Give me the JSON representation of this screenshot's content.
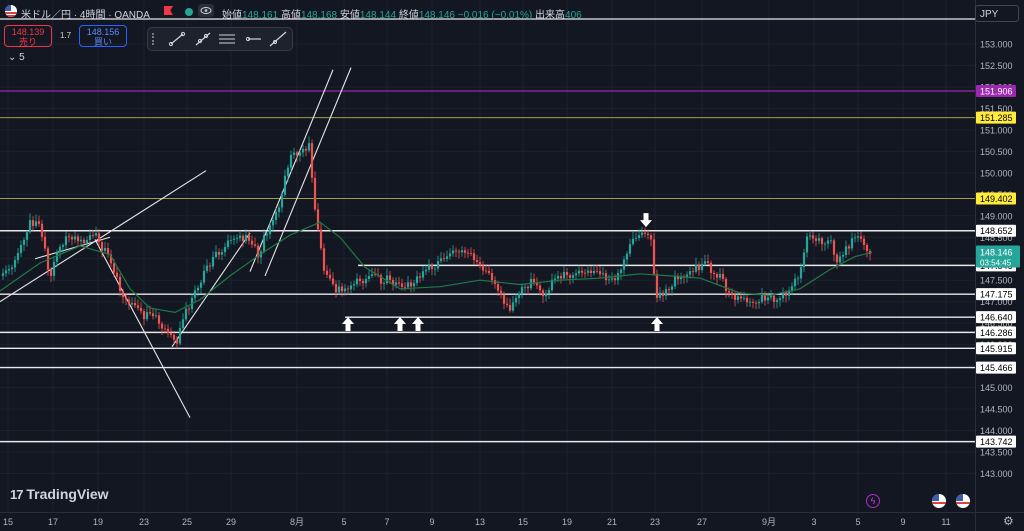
{
  "header": {
    "symbol": "米ドル／円 · 4時間 · OANDA",
    "open_label": "始値",
    "open": "148.161",
    "high_label": "高値",
    "high": "148.168",
    "low_label": "安値",
    "low": "148.144",
    "close_label": "終値",
    "close": "148.146",
    "change": "−0.016 (−0.01%)",
    "volume_label": "出来高",
    "volume": "406"
  },
  "trade": {
    "sell_price": "148.139",
    "sell_label": "売り",
    "spread": "1.7",
    "buy_price": "148.156",
    "buy_label": "買い"
  },
  "indicator_count": "5",
  "currency_button": "JPY",
  "brand": "TradingView",
  "countdown": "03:54:45",
  "icons": [
    "flag-icon",
    "eye-icon",
    "trend-line-icon",
    "ray-icon",
    "horizontal-lines-icon",
    "horizontal-ray-icon",
    "extended-line-icon",
    "lightning-icon",
    "us-flag-icon",
    "settings-icon",
    "chevron-down-icon",
    "tradingview-logo-icon"
  ],
  "colors": {
    "background": "#131722",
    "up": "#26a69a",
    "down": "#ef5350",
    "ma": "#1e7a46",
    "purple_level": "#9c27b0",
    "olive_level": "#a0a040",
    "current_price": "#26a69a"
  },
  "chart_data": {
    "type": "candlestick",
    "symbol": "USD/JPY",
    "timeframe": "4H",
    "y_axis": {
      "range": [
        143.0,
        153.5
      ],
      "ticks": [
        "153.000",
        "152.500",
        "152.000",
        "151.500",
        "151.000",
        "150.500",
        "150.000",
        "149.500",
        "149.000",
        "148.500",
        "148.000",
        "147.500",
        "147.000",
        "146.500",
        "146.000",
        "145.500",
        "145.000",
        "144.500",
        "144.000",
        "143.500",
        "143.000"
      ]
    },
    "x_axis": {
      "ticks": [
        "15",
        "17",
        "19",
        "23",
        "25",
        "29",
        "8月",
        "5",
        "7",
        "9",
        "13",
        "15",
        "19",
        "21",
        "23",
        "27",
        "9月",
        "3",
        "5",
        "9",
        "11"
      ]
    },
    "price_levels": [
      {
        "value": "151.906",
        "style": "purple"
      },
      {
        "value": "151.285",
        "style": "yellow"
      },
      {
        "value": "149.402",
        "style": "yellow"
      },
      {
        "value": "148.652",
        "style": "white"
      },
      {
        "value": "147.846",
        "style": "white"
      },
      {
        "value": "147.175",
        "style": "white"
      },
      {
        "value": "146.640",
        "style": "white"
      },
      {
        "value": "146.286",
        "style": "white"
      },
      {
        "value": "145.915",
        "style": "white"
      },
      {
        "value": "145.466",
        "style": "white"
      },
      {
        "value": "143.742",
        "style": "white"
      }
    ],
    "current_price": "148.146",
    "close_path": [
      [
        0,
        147.6
      ],
      [
        9,
        147.75
      ],
      [
        18,
        148.1
      ],
      [
        28,
        148.8
      ],
      [
        40,
        148.75
      ],
      [
        50,
        147.6
      ],
      [
        58,
        148.3
      ],
      [
        68,
        148.55
      ],
      [
        82,
        148.45
      ],
      [
        96,
        148.5
      ],
      [
        108,
        148.05
      ],
      [
        120,
        147.3
      ],
      [
        130,
        146.95
      ],
      [
        142,
        146.7
      ],
      [
        155,
        146.6
      ],
      [
        163,
        146.45
      ],
      [
        170,
        146.2
      ],
      [
        177,
        146.05
      ],
      [
        186,
        146.75
      ],
      [
        198,
        147.4
      ],
      [
        212,
        147.95
      ],
      [
        222,
        148.2
      ],
      [
        234,
        148.5
      ],
      [
        246,
        148.5
      ],
      [
        258,
        148.1
      ],
      [
        270,
        148.8
      ],
      [
        280,
        149.3
      ],
      [
        290,
        150.4
      ],
      [
        300,
        150.55
      ],
      [
        310,
        150.6
      ],
      [
        314,
        149.2
      ],
      [
        320,
        148.3
      ],
      [
        324,
        147.7
      ],
      [
        335,
        147.25
      ],
      [
        345,
        147.3
      ],
      [
        358,
        147.5
      ],
      [
        372,
        147.55
      ],
      [
        390,
        147.5
      ],
      [
        404,
        147.3
      ],
      [
        418,
        147.55
      ],
      [
        432,
        147.85
      ],
      [
        445,
        147.95
      ],
      [
        457,
        148.25
      ],
      [
        468,
        148.15
      ],
      [
        480,
        147.8
      ],
      [
        496,
        147.4
      ],
      [
        504,
        147.0
      ],
      [
        510,
        146.7
      ],
      [
        520,
        147.35
      ],
      [
        532,
        147.45
      ],
      [
        545,
        147.2
      ],
      [
        556,
        147.55
      ],
      [
        570,
        147.65
      ],
      [
        586,
        147.7
      ],
      [
        600,
        147.6
      ],
      [
        614,
        147.45
      ],
      [
        628,
        148.25
      ],
      [
        642,
        148.55
      ],
      [
        652,
        148.55
      ],
      [
        655,
        147.05
      ],
      [
        665,
        147.25
      ],
      [
        676,
        147.55
      ],
      [
        690,
        147.7
      ],
      [
        705,
        147.85
      ],
      [
        718,
        147.65
      ],
      [
        730,
        147.2
      ],
      [
        745,
        147.0
      ],
      [
        760,
        147.05
      ],
      [
        775,
        147.1
      ],
      [
        790,
        147.3
      ],
      [
        800,
        147.7
      ],
      [
        807,
        148.55
      ],
      [
        818,
        148.45
      ],
      [
        830,
        148.45
      ],
      [
        838,
        147.95
      ],
      [
        848,
        148.3
      ],
      [
        857,
        148.55
      ],
      [
        866,
        148.3
      ],
      [
        872,
        148.15
      ]
    ],
    "moving_average_path": [
      [
        0,
        147.25
      ],
      [
        40,
        147.9
      ],
      [
        80,
        148.3
      ],
      [
        110,
        148.1
      ],
      [
        130,
        147.3
      ],
      [
        150,
        146.85
      ],
      [
        175,
        146.75
      ],
      [
        200,
        147.05
      ],
      [
        230,
        147.6
      ],
      [
        260,
        148.1
      ],
      [
        290,
        148.55
      ],
      [
        320,
        148.85
      ],
      [
        340,
        148.5
      ],
      [
        365,
        147.8
      ],
      [
        400,
        147.3
      ],
      [
        440,
        147.35
      ],
      [
        480,
        147.5
      ],
      [
        520,
        147.4
      ],
      [
        560,
        147.5
      ],
      [
        600,
        147.55
      ],
      [
        640,
        147.65
      ],
      [
        670,
        147.6
      ],
      [
        700,
        147.55
      ],
      [
        740,
        147.2
      ],
      [
        770,
        147.15
      ],
      [
        800,
        147.3
      ],
      [
        830,
        147.75
      ],
      [
        855,
        148.05
      ],
      [
        872,
        148.15
      ]
    ],
    "drawn_trendlines": [
      {
        "from": [
          0,
          147.0
        ],
        "to": [
          206,
          150.05
        ]
      },
      {
        "from": [
          35,
          148.0
        ],
        "to": [
          110,
          148.5
        ]
      },
      {
        "from": [
          95,
          148.45
        ],
        "to": [
          190,
          144.3
        ]
      },
      {
        "from": [
          172,
          145.95
        ],
        "to": [
          250,
          148.6
        ]
      },
      {
        "from": [
          250,
          147.7
        ],
        "to": [
          333,
          152.4
        ]
      },
      {
        "from": [
          265,
          147.6
        ],
        "to": [
          351,
          152.45
        ]
      },
      {
        "from": [
          358,
          147.846
        ],
        "to": [
          975,
          147.846
        ]
      },
      {
        "from": [
          345,
          146.64
        ],
        "to": [
          975,
          146.64
        ]
      }
    ],
    "arrows": [
      {
        "x": 348,
        "price": 146.48,
        "dir": "up"
      },
      {
        "x": 400,
        "price": 146.48,
        "dir": "up"
      },
      {
        "x": 418,
        "price": 146.48,
        "dir": "up"
      },
      {
        "x": 657,
        "price": 146.48,
        "dir": "up"
      },
      {
        "x": 646,
        "price": 148.9,
        "dir": "down"
      }
    ]
  }
}
